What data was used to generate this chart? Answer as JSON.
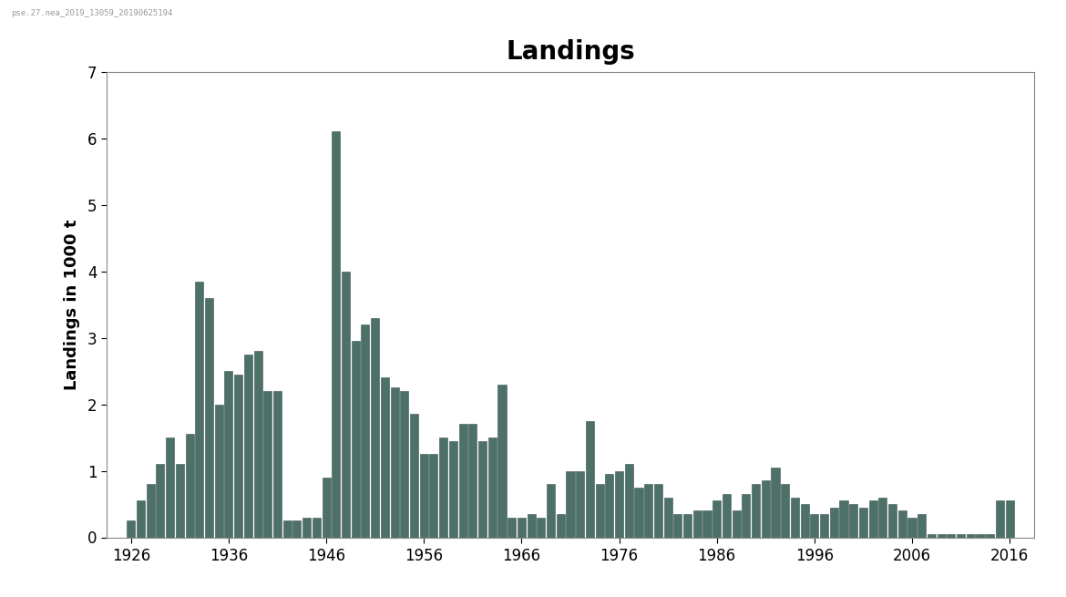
{
  "title": "Landings",
  "ylabel": "Landings in 1000 t",
  "ylim": [
    0,
    7
  ],
  "yticks": [
    0,
    1,
    2,
    3,
    4,
    5,
    6,
    7
  ],
  "xticks": [
    1926,
    1936,
    1946,
    1956,
    1966,
    1976,
    1986,
    1996,
    2006,
    2016
  ],
  "xlim": [
    1923.5,
    2018.5
  ],
  "bar_color": "#4d7069",
  "bar_edge_color": "#3a5550",
  "background_color": "#ffffff",
  "title_fontsize": 20,
  "label_fontsize": 13,
  "tick_fontsize": 12,
  "watermark": "pse.27.nea_2019_13059_20190625194",
  "years": [
    1926,
    1927,
    1928,
    1929,
    1930,
    1931,
    1932,
    1933,
    1934,
    1935,
    1936,
    1937,
    1938,
    1939,
    1940,
    1941,
    1942,
    1943,
    1944,
    1945,
    1946,
    1947,
    1948,
    1949,
    1950,
    1951,
    1952,
    1953,
    1954,
    1955,
    1956,
    1957,
    1958,
    1959,
    1960,
    1961,
    1962,
    1963,
    1964,
    1965,
    1966,
    1967,
    1968,
    1969,
    1970,
    1971,
    1972,
    1973,
    1974,
    1975,
    1976,
    1977,
    1978,
    1979,
    1980,
    1981,
    1982,
    1983,
    1984,
    1985,
    1986,
    1987,
    1988,
    1989,
    1990,
    1991,
    1992,
    1993,
    1994,
    1995,
    1996,
    1997,
    1998,
    1999,
    2000,
    2001,
    2002,
    2003,
    2004,
    2005,
    2006,
    2007,
    2008,
    2009,
    2010,
    2011,
    2012,
    2013,
    2014,
    2015,
    2016
  ],
  "values": [
    0.25,
    0.55,
    0.8,
    1.1,
    1.5,
    1.1,
    1.55,
    3.85,
    3.6,
    2.0,
    2.5,
    2.45,
    2.75,
    2.8,
    2.2,
    2.2,
    0.25,
    0.25,
    0.3,
    0.3,
    0.9,
    6.1,
    4.0,
    2.95,
    3.2,
    3.3,
    2.4,
    2.25,
    2.2,
    1.85,
    1.25,
    1.25,
    1.5,
    1.45,
    1.7,
    1.7,
    1.45,
    1.5,
    2.3,
    0.3,
    0.3,
    0.35,
    0.3,
    0.8,
    0.35,
    1.0,
    1.0,
    1.75,
    0.8,
    0.95,
    1.0,
    1.1,
    0.75,
    0.8,
    0.8,
    0.6,
    0.35,
    0.35,
    0.4,
    0.4,
    0.55,
    0.65,
    0.4,
    0.65,
    0.8,
    0.85,
    1.05,
    0.8,
    0.6,
    0.5,
    0.35,
    0.35,
    0.45,
    0.55,
    0.5,
    0.45,
    0.55,
    0.6,
    0.5,
    0.4,
    0.3,
    0.35,
    0.05,
    0.05,
    0.05,
    0.05,
    0.05,
    0.05,
    0.05,
    0.55,
    0.55
  ]
}
